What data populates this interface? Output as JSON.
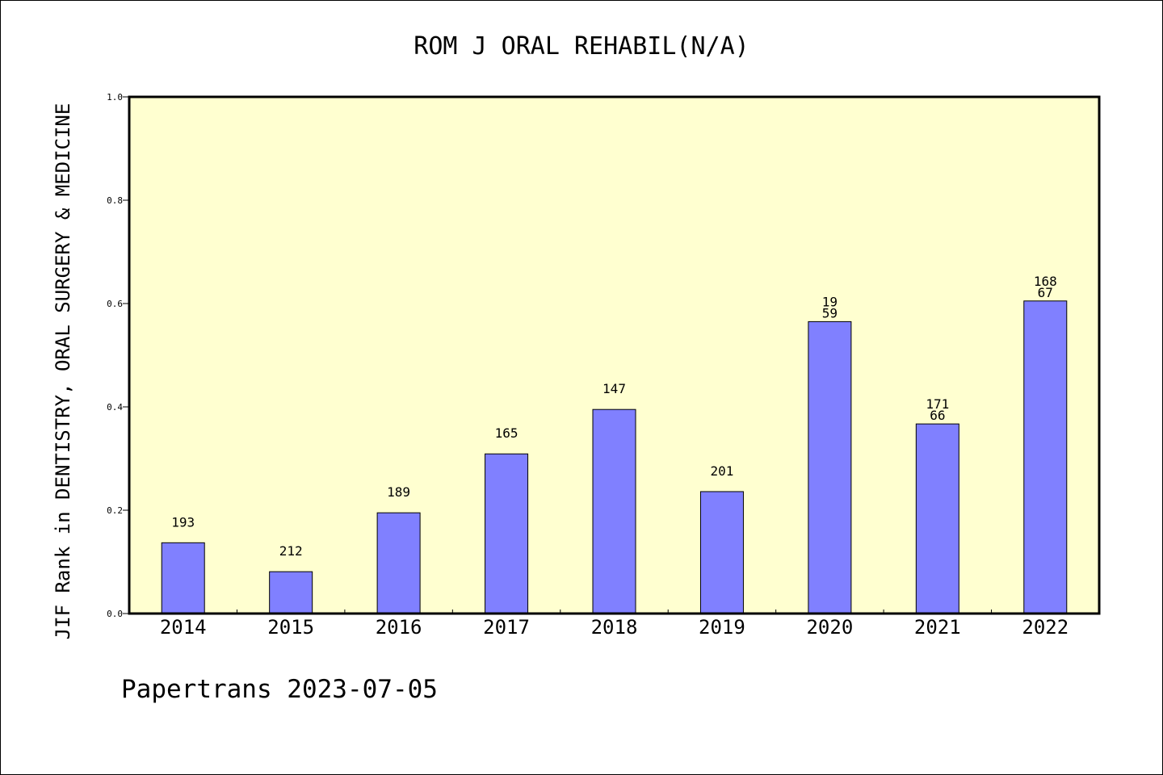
{
  "chart_data": {
    "type": "bar",
    "title": "ROM J ORAL REHABIL(N/A)",
    "xlabel": "",
    "ylabel": "JIF Rank in DENTISTRY, ORAL SURGERY & MEDICINE",
    "ylim": [
      0,
      1.0
    ],
    "yticks": [
      "0.0",
      "0.2",
      "0.4",
      "0.6",
      "0.8",
      "1.0"
    ],
    "grid": false,
    "categories": [
      "2014",
      "2015",
      "2016",
      "2017",
      "2018",
      "2019",
      "2020",
      "2021",
      "2022"
    ],
    "values": [
      0.137,
      0.081,
      0.195,
      0.309,
      0.395,
      0.236,
      0.565,
      0.367,
      0.605
    ],
    "labels": [
      [
        "193"
      ],
      [
        "212"
      ],
      [
        "189"
      ],
      [
        "165"
      ],
      [
        "147"
      ],
      [
        "201"
      ],
      [
        "19",
        "59"
      ],
      [
        "171",
        "66"
      ],
      [
        "168",
        "67"
      ]
    ],
    "colors": {
      "bar": "#8080ff",
      "plot_bg": "#ffffd0",
      "axis": "#000000"
    }
  },
  "footer": "Papertrans 2023-07-05"
}
